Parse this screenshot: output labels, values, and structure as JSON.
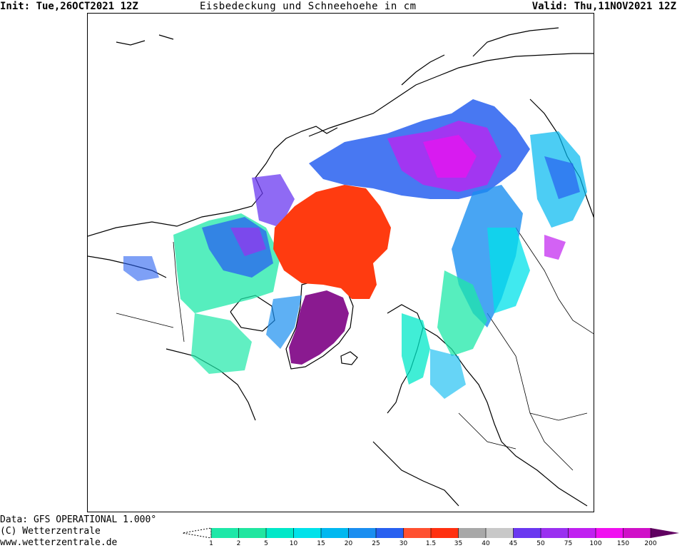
{
  "header": {
    "init": "Init: Tue,26OCT2021 12Z",
    "title": "Eisbedeckung und Schneehoehe in cm",
    "valid": "Valid: Thu,11NOV2021 12Z"
  },
  "footer": {
    "data_source": "Data: GFS OPERATIONAL 1.000°",
    "copyright": "(C) Wetterzentrale",
    "website": "www.wetterzentrale.de"
  },
  "legend": {
    "ticks": [
      "1",
      "2",
      "5",
      "10",
      "15",
      "20",
      "25",
      "30",
      "1.5",
      "35",
      "40",
      "45",
      "50",
      "75",
      "100",
      "150",
      "200"
    ],
    "snow_colors": [
      "#1ee8a8",
      "#20e6a0",
      "#00e8c8",
      "#00e2ea",
      "#00b8f0",
      "#1a8ef0",
      "#2860f0"
    ],
    "ice_colors": [
      "#ff5030",
      "#ff3010"
    ],
    "grey_colors": [
      "#a8a8a8",
      "#c8c8c8"
    ],
    "deep_colors": [
      "#6a38f0",
      "#9a30f0",
      "#c020f0",
      "#f010f0",
      "#d010c8",
      "#a010a0",
      "#800080",
      "#600060"
    ],
    "ice_color": "#ff3b10",
    "greenland_color": "#8a1a90"
  }
}
